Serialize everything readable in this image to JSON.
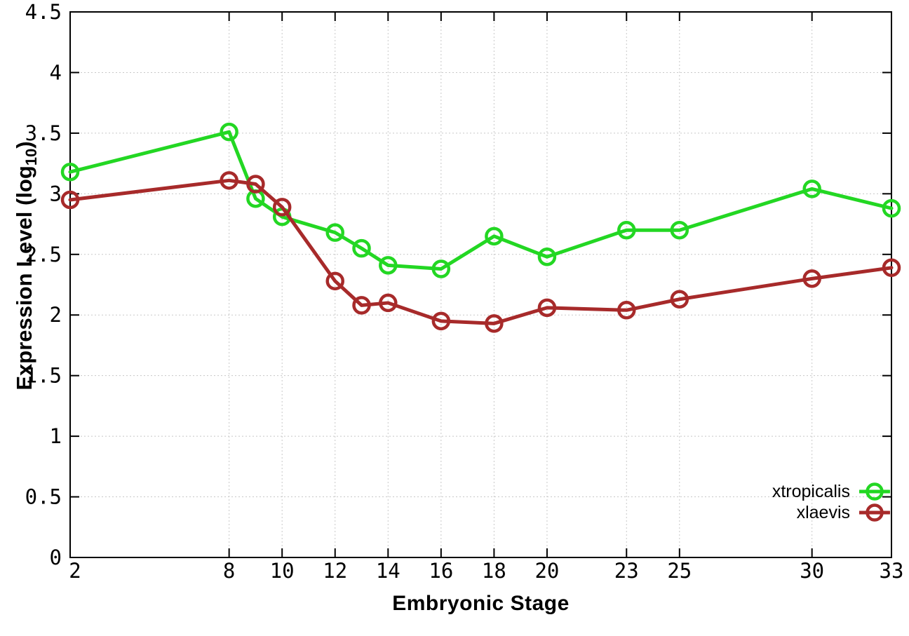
{
  "chart_data": {
    "type": "line",
    "title": "",
    "xlabel": "Embryonic Stage",
    "ylabel": "Expression Level (log10)",
    "ylabel_parts": {
      "main": "Expression Level (log",
      "sub": "10",
      "close": ")"
    },
    "xlim": [
      2,
      33
    ],
    "ylim": [
      0,
      4.5
    ],
    "xticks": [
      2,
      8,
      10,
      12,
      14,
      16,
      18,
      20,
      23,
      25,
      30,
      33
    ],
    "yticks": [
      0,
      0.5,
      1,
      1.5,
      2,
      2.5,
      3,
      3.5,
      4,
      4.5
    ],
    "grid": true,
    "grid_style": "dotted",
    "legend_position": "bottom-right",
    "x": [
      2,
      8,
      9,
      10,
      12,
      13,
      14,
      16,
      18,
      20,
      23,
      25,
      30,
      33
    ],
    "series": [
      {
        "name": "xtropicalis",
        "color": "#23d723",
        "marker": "open-circle",
        "values": [
          3.18,
          3.51,
          2.96,
          2.81,
          2.68,
          2.55,
          2.41,
          2.38,
          2.65,
          2.48,
          2.7,
          2.7,
          3.04,
          2.88
        ]
      },
      {
        "name": "xlaevis",
        "color": "#a72a2a",
        "marker": "open-circle",
        "values": [
          2.95,
          3.11,
          3.08,
          2.89,
          2.28,
          2.08,
          2.1,
          1.95,
          1.93,
          2.06,
          2.04,
          2.13,
          2.3,
          2.39
        ]
      }
    ],
    "style": {
      "border_color": "#000000",
      "grid_color": "#c8c8c8",
      "tick_label_color": "#000000",
      "line_width": 5,
      "marker_radius": 11
    }
  }
}
